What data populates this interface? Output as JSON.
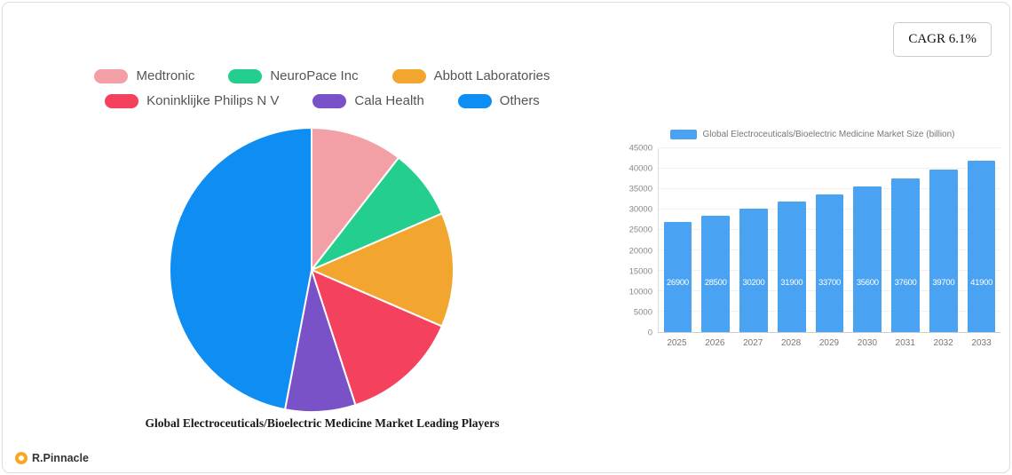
{
  "card": {
    "cagr_label": "CAGR 6.1%"
  },
  "brand": {
    "name": "R.Pinnacle"
  },
  "chart_data": [
    {
      "type": "pie",
      "title": "Global Electroceuticals/Bioelectric Medicine Market Leading Players",
      "labels": [
        "Medtronic",
        "NeuroPace Inc",
        "Abbott Laboratories",
        "Koninklijke Philips N V",
        "Cala Health",
        "Others"
      ],
      "values": [
        10.5,
        8,
        13,
        13.5,
        8,
        47
      ],
      "colors": [
        "#F2A0A5",
        "#24CE8F",
        "#F2A52F",
        "#F4415E",
        "#7A52C7",
        "#0E8DF2"
      ],
      "legend_position": "top",
      "legend_rows": [
        3,
        3
      ],
      "start_angle_deg": -90,
      "direction": "clockwise"
    },
    {
      "type": "bar",
      "legend_label": "Global Electroceuticals/Bioelectric Medicine Market Size (billion)",
      "categories": [
        "2025",
        "2026",
        "2027",
        "2028",
        "2029",
        "2030",
        "2031",
        "2032",
        "2033"
      ],
      "values": [
        26900,
        28500,
        30200,
        31900,
        33700,
        35600,
        37600,
        39700,
        41900
      ],
      "bar_color": "#4AA3F2",
      "ylim": [
        0,
        45000
      ],
      "ytick_step": 5000,
      "grid": true,
      "legend_position": "top"
    }
  ]
}
